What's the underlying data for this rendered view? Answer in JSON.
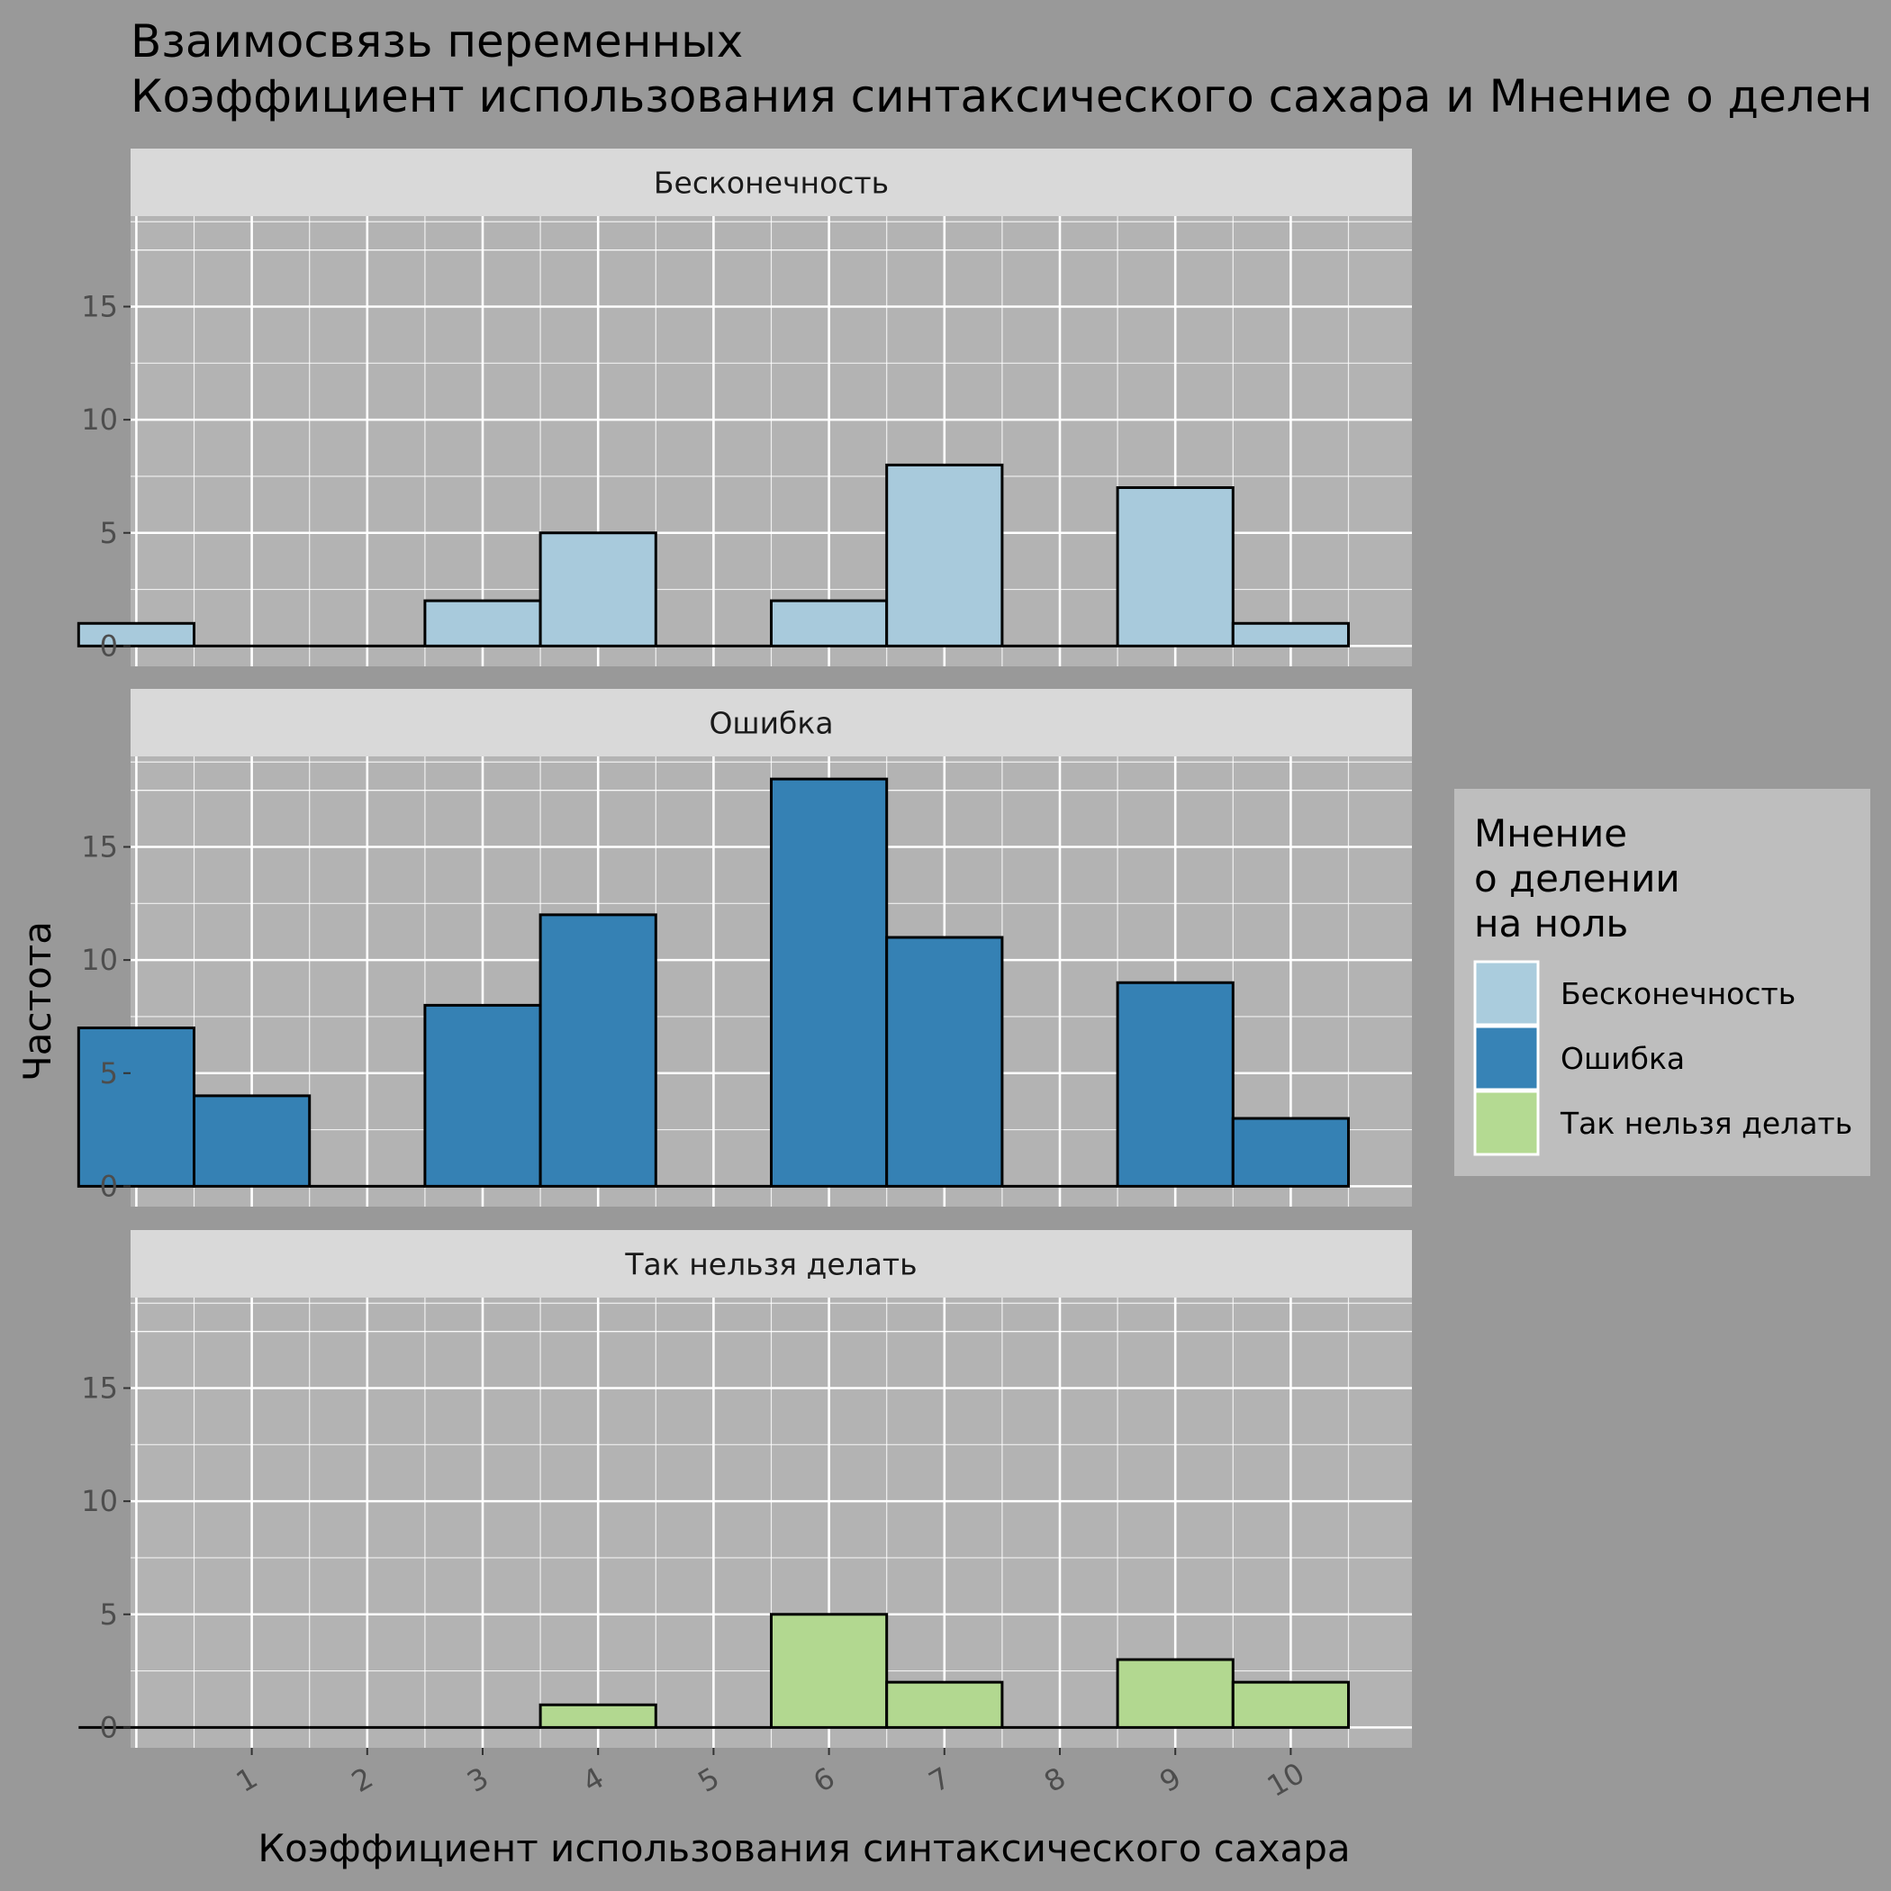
{
  "chart_data": {
    "type": "bar",
    "title": "Взаимосвязь переменных",
    "subtitle": "Коэффициент использования синтаксического сахара и Мнение о делен",
    "xlabel": "Коэффициент использования синтаксического сахара",
    "ylabel": "Частота",
    "x_ticks": [
      1,
      2,
      3,
      4,
      5,
      6,
      7,
      8,
      9,
      10
    ],
    "y_ticks": [
      0,
      5,
      10,
      15
    ],
    "xlim": [
      -0.05,
      11.05
    ],
    "ylim": [
      -0.9,
      19
    ],
    "categories": [
      0,
      1,
      2,
      3,
      4,
      5,
      6,
      7,
      8,
      9,
      10
    ],
    "grid": true,
    "legend": {
      "title": "Мнение\nо делении\nна ноль",
      "placement": "right"
    },
    "series": [
      {
        "name": "Бесконечность",
        "color": "#a6cee3",
        "values": [
          1,
          0,
          0,
          2,
          5,
          0,
          2,
          8,
          0,
          7,
          1
        ]
      },
      {
        "name": "Ошибка",
        "color": "#1f78b4",
        "values": [
          7,
          4,
          0,
          8,
          12,
          0,
          18,
          11,
          0,
          9,
          3
        ]
      },
      {
        "name": "Так нельзя делать",
        "color": "#b2df8a",
        "values": [
          0,
          0,
          0,
          0,
          1,
          0,
          5,
          2,
          0,
          3,
          2
        ]
      }
    ]
  }
}
